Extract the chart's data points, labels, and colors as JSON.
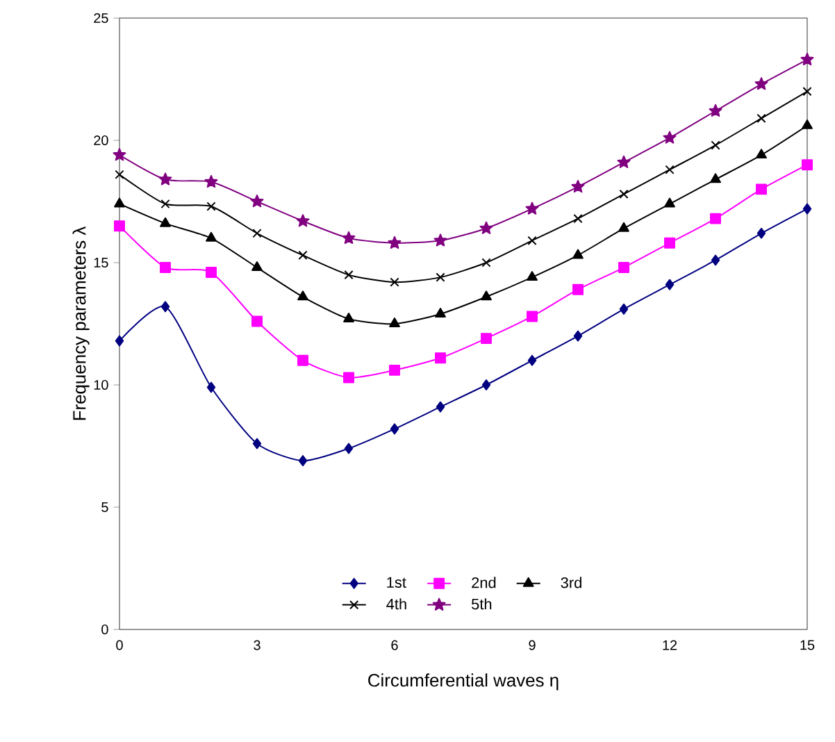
{
  "chart_data": {
    "type": "line",
    "xlabel": "Circumferential waves η",
    "ylabel": "Frequency parameters λ",
    "x": [
      0,
      1,
      2,
      3,
      4,
      5,
      6,
      7,
      8,
      9,
      10,
      11,
      12,
      13,
      14,
      15
    ],
    "xlim": [
      0,
      15
    ],
    "xticks": [
      0,
      3,
      6,
      9,
      12,
      15
    ],
    "ylim": [
      0,
      25
    ],
    "yticks": [
      0,
      5,
      10,
      15,
      20,
      25
    ],
    "legend": "bottom",
    "grid": false,
    "line_style": "solid",
    "series": [
      {
        "name": "1st",
        "color": "#000080",
        "marker": "diamond",
        "values": [
          11.8,
          13.2,
          9.9,
          7.6,
          6.9,
          7.4,
          8.2,
          9.1,
          10.0,
          11.0,
          12.0,
          13.1,
          14.1,
          15.1,
          16.2,
          17.2
        ]
      },
      {
        "name": "2nd",
        "color": "#ff00ff",
        "marker": "square",
        "values": [
          16.5,
          14.8,
          14.6,
          12.6,
          11.0,
          10.3,
          10.6,
          11.1,
          11.9,
          12.8,
          13.9,
          14.8,
          15.8,
          16.8,
          18.0,
          19.0
        ]
      },
      {
        "name": "3rd",
        "color": "#000000",
        "marker": "triangle",
        "values": [
          17.4,
          16.6,
          16.0,
          14.8,
          13.6,
          12.7,
          12.5,
          12.9,
          13.6,
          14.4,
          15.3,
          16.4,
          17.4,
          18.4,
          19.4,
          20.6
        ]
      },
      {
        "name": "4th",
        "color": "#000000",
        "marker": "cross",
        "values": [
          18.6,
          17.4,
          17.3,
          16.2,
          15.3,
          14.5,
          14.2,
          14.4,
          15.0,
          15.9,
          16.8,
          17.8,
          18.8,
          19.8,
          20.9,
          22.0
        ]
      },
      {
        "name": "5th",
        "color": "#800080",
        "marker": "star",
        "values": [
          19.4,
          18.4,
          18.3,
          17.5,
          16.7,
          16.0,
          15.8,
          15.9,
          16.4,
          17.2,
          18.1,
          19.1,
          20.1,
          21.2,
          22.3,
          23.3
        ]
      }
    ]
  }
}
